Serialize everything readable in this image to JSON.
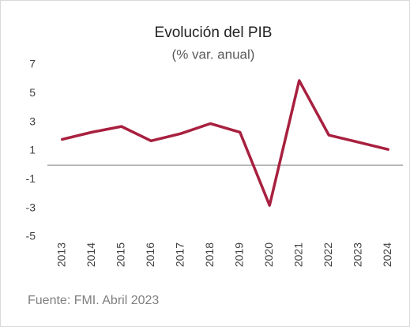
{
  "chart_data": {
    "type": "line",
    "title": "Evolución del PIB",
    "subtitle": "(% var. anual)",
    "source": "Fuente: FMI. Abril 2023",
    "categories": [
      "2013",
      "2014",
      "2015",
      "2016",
      "2017",
      "2018",
      "2019",
      "2020",
      "2021",
      "2022",
      "2023",
      "2024"
    ],
    "values": [
      1.8,
      2.3,
      2.7,
      1.7,
      2.2,
      2.9,
      2.3,
      -2.8,
      5.9,
      2.1,
      1.6,
      1.1
    ],
    "color": "#a8203f",
    "ylim": [
      -5,
      7
    ],
    "yticks": [
      -5,
      -3,
      -1,
      1,
      3,
      5,
      7
    ],
    "grid": false
  }
}
